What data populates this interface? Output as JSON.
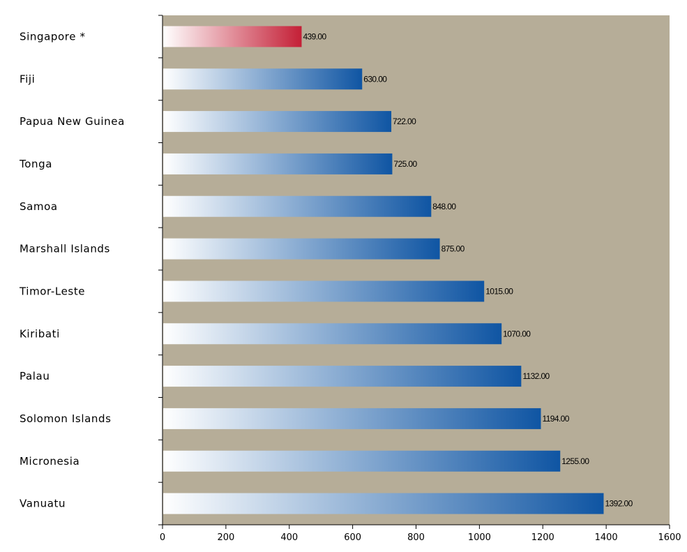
{
  "chart_data": {
    "type": "bar",
    "orientation": "horizontal",
    "categories": [
      "Singapore *",
      "Fiji",
      "Papua New Guinea",
      "Tonga",
      "Samoa",
      "Marshall Islands",
      "Timor-Leste",
      "Kiribati",
      "Palau",
      "Solomon Islands",
      "Micronesia",
      "Vanuatu"
    ],
    "values": [
      439,
      630,
      722,
      725,
      848,
      875,
      1015,
      1070,
      1132,
      1194,
      1255,
      1392
    ],
    "value_labels": [
      "439.00",
      "630.00",
      "722.00",
      "725.00",
      "848.00",
      "875.00",
      "1015.00",
      "1070.00",
      "1132.00",
      "1194.00",
      "1255.00",
      "1392.00"
    ],
    "highlighted_category": "Singapore *",
    "xlim": [
      0,
      1600
    ],
    "xticks": [
      0,
      200,
      400,
      600,
      800,
      1000,
      1200,
      1400,
      1600
    ],
    "xtick_labels": [
      "0",
      "200",
      "400",
      "600",
      "800",
      "1000",
      "1200",
      "1400",
      "1600"
    ],
    "title": "",
    "xlabel": "",
    "ylabel": "",
    "grid": false,
    "legend": "none",
    "colors": {
      "plot_background": "#b6ad98",
      "bar_gradient_start": "#ffffff",
      "bar_gradient_end": "#0f55a3",
      "highlight_gradient_start": "#ffffff",
      "highlight_gradient_end": "#c41f36",
      "axis": "#000000"
    }
  }
}
